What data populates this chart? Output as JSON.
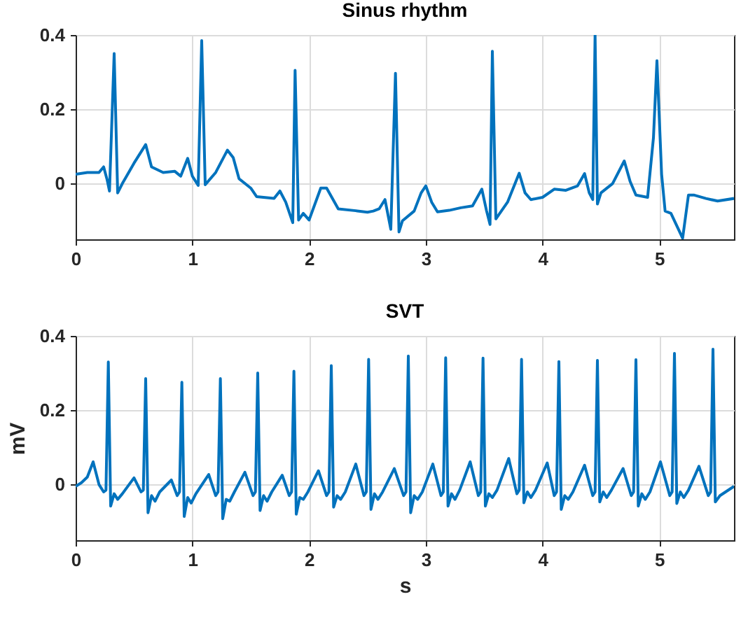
{
  "chart_data": [
    {
      "type": "line",
      "title": "Sinus rhythm",
      "xlim": [
        0,
        5.64
      ],
      "ylim": [
        -0.15,
        0.4
      ],
      "xticks": [
        0,
        1,
        2,
        3,
        4,
        5
      ],
      "yticks": [
        0,
        0.2,
        0.4
      ],
      "grid": true,
      "x": [
        0,
        0.1,
        0.2,
        0.24,
        0.27,
        0.29,
        0.33,
        0.36,
        0.4,
        0.5,
        0.6,
        0.65,
        0.75,
        0.85,
        0.9,
        0.96,
        1.0,
        1.05,
        1.08,
        1.11,
        1.2,
        1.3,
        1.35,
        1.4,
        1.5,
        1.55,
        1.7,
        1.75,
        1.8,
        1.86,
        1.88,
        1.91,
        1.95,
        2.0,
        2.1,
        2.15,
        2.25,
        2.4,
        2.5,
        2.55,
        2.6,
        2.65,
        2.7,
        2.74,
        2.77,
        2.8,
        2.9,
        2.96,
        3.0,
        3.05,
        3.1,
        3.2,
        3.3,
        3.4,
        3.48,
        3.52,
        3.55,
        3.57,
        3.6,
        3.7,
        3.8,
        3.85,
        3.9,
        4.0,
        4.1,
        4.2,
        4.3,
        4.36,
        4.4,
        4.43,
        4.45,
        4.47,
        4.5,
        4.6,
        4.7,
        4.75,
        4.8,
        4.9,
        4.95,
        4.98,
        5.02,
        5.05,
        5.1,
        5.2,
        5.25,
        5.3,
        5.4,
        5.5,
        5.64
      ],
      "series": [
        {
          "color": "#0072bd",
          "values": [
            0.025,
            0.03,
            0.03,
            0.045,
            0.01,
            -0.02,
            0.35,
            -0.025,
            0,
            0.055,
            0.105,
            0.045,
            0.03,
            0.033,
            0.02,
            0.068,
            0.02,
            -0.005,
            0.385,
            -0.003,
            0.03,
            0.09,
            0.07,
            0.013,
            -0.012,
            -0.035,
            -0.04,
            -0.02,
            -0.05,
            -0.105,
            0.305,
            -0.098,
            -0.08,
            -0.098,
            -0.012,
            -0.012,
            -0.068,
            -0.073,
            -0.077,
            -0.074,
            -0.068,
            -0.043,
            -0.123,
            0.297,
            -0.13,
            -0.1,
            -0.074,
            -0.025,
            -0.006,
            -0.05,
            -0.076,
            -0.072,
            -0.065,
            -0.06,
            -0.015,
            -0.073,
            -0.11,
            0.356,
            -0.095,
            -0.05,
            0.028,
            -0.025,
            -0.043,
            -0.037,
            -0.015,
            -0.018,
            -0.006,
            0.027,
            -0.025,
            -0.043,
            0.4,
            -0.055,
            -0.025,
            0,
            0.061,
            0.006,
            -0.031,
            -0.037,
            0.123,
            0.331,
            0.025,
            -0.074,
            -0.08,
            -0.147,
            -0.031,
            -0.031,
            -0.04,
            -0.047,
            -0.04
          ]
        }
      ]
    },
    {
      "type": "line",
      "title": "SVT",
      "xlabel": "s",
      "ylabel": "mV",
      "xlim": [
        0,
        5.64
      ],
      "ylim": [
        -0.15,
        0.4
      ],
      "xticks": [
        0,
        1,
        2,
        3,
        4,
        5
      ],
      "yticks": [
        0,
        0.2,
        0.4
      ],
      "grid": true,
      "x": [
        0,
        0.05,
        0.1,
        0.15,
        0.2,
        0.24,
        0.26,
        0.28,
        0.3,
        0.33,
        0.36,
        0.4,
        0.5,
        0.56,
        0.58,
        0.6,
        0.62,
        0.65,
        0.68,
        0.72,
        0.82,
        0.87,
        0.89,
        0.91,
        0.93,
        0.96,
        0.99,
        1.03,
        1.14,
        1.2,
        1.22,
        1.24,
        1.26,
        1.29,
        1.32,
        1.36,
        1.45,
        1.52,
        1.54,
        1.56,
        1.58,
        1.61,
        1.64,
        1.68,
        1.77,
        1.83,
        1.85,
        1.87,
        1.89,
        1.92,
        1.95,
        1.99,
        2.08,
        2.15,
        2.17,
        2.19,
        2.21,
        2.24,
        2.27,
        2.31,
        2.4,
        2.47,
        2.49,
        2.51,
        2.53,
        2.56,
        2.59,
        2.63,
        2.73,
        2.81,
        2.83,
        2.85,
        2.87,
        2.9,
        2.93,
        2.97,
        3.06,
        3.13,
        3.15,
        3.17,
        3.19,
        3.22,
        3.25,
        3.29,
        3.38,
        3.45,
        3.47,
        3.49,
        3.51,
        3.54,
        3.57,
        3.61,
        3.71,
        3.78,
        3.8,
        3.82,
        3.84,
        3.87,
        3.9,
        3.94,
        4.04,
        4.1,
        4.12,
        4.14,
        4.16,
        4.19,
        4.22,
        4.26,
        4.36,
        4.43,
        4.45,
        4.47,
        4.49,
        4.52,
        4.55,
        4.59,
        4.69,
        4.76,
        4.78,
        4.8,
        4.82,
        4.85,
        4.88,
        4.92,
        5.01,
        5.09,
        5.11,
        5.13,
        5.15,
        5.18,
        5.21,
        5.25,
        5.34,
        5.42,
        5.44,
        5.46,
        5.48,
        5.52,
        5.64
      ],
      "series": [
        {
          "color": "#0072bd",
          "values": [
            -0.005,
            0.005,
            0.02,
            0.061,
            0,
            -0.02,
            -0.015,
            0.33,
            -0.058,
            -0.025,
            -0.04,
            -0.025,
            0.018,
            -0.02,
            -0.015,
            0.285,
            -0.076,
            -0.03,
            -0.045,
            -0.02,
            0.012,
            -0.03,
            -0.02,
            0.275,
            -0.086,
            -0.035,
            -0.05,
            -0.025,
            0.027,
            -0.03,
            -0.02,
            0.285,
            -0.092,
            -0.04,
            -0.045,
            -0.02,
            0.033,
            -0.03,
            -0.02,
            0.3,
            -0.07,
            -0.03,
            -0.045,
            -0.02,
            0.025,
            -0.03,
            -0.02,
            0.305,
            -0.08,
            -0.035,
            -0.04,
            -0.02,
            0.037,
            -0.03,
            -0.02,
            0.32,
            -0.061,
            -0.03,
            -0.04,
            -0.02,
            0.055,
            -0.03,
            -0.02,
            0.337,
            -0.067,
            -0.025,
            -0.04,
            -0.02,
            0.043,
            -0.03,
            -0.02,
            0.346,
            -0.076,
            -0.03,
            -0.04,
            -0.02,
            0.055,
            -0.03,
            -0.02,
            0.341,
            -0.058,
            -0.025,
            -0.04,
            -0.015,
            0.061,
            -0.03,
            -0.02,
            0.34,
            -0.058,
            -0.025,
            -0.035,
            -0.015,
            0.07,
            -0.025,
            -0.015,
            0.337,
            -0.049,
            -0.02,
            -0.035,
            -0.015,
            0.058,
            -0.03,
            -0.02,
            0.331,
            -0.067,
            -0.03,
            -0.04,
            -0.02,
            0.052,
            -0.03,
            -0.02,
            0.334,
            -0.047,
            -0.02,
            -0.035,
            -0.015,
            0.043,
            -0.03,
            -0.02,
            0.336,
            -0.058,
            -0.025,
            -0.04,
            -0.02,
            0.061,
            -0.03,
            -0.02,
            0.353,
            -0.051,
            -0.02,
            -0.035,
            -0.015,
            0.049,
            -0.03,
            -0.02,
            0.364,
            -0.047,
            -0.03,
            -0.005
          ]
        }
      ]
    }
  ]
}
